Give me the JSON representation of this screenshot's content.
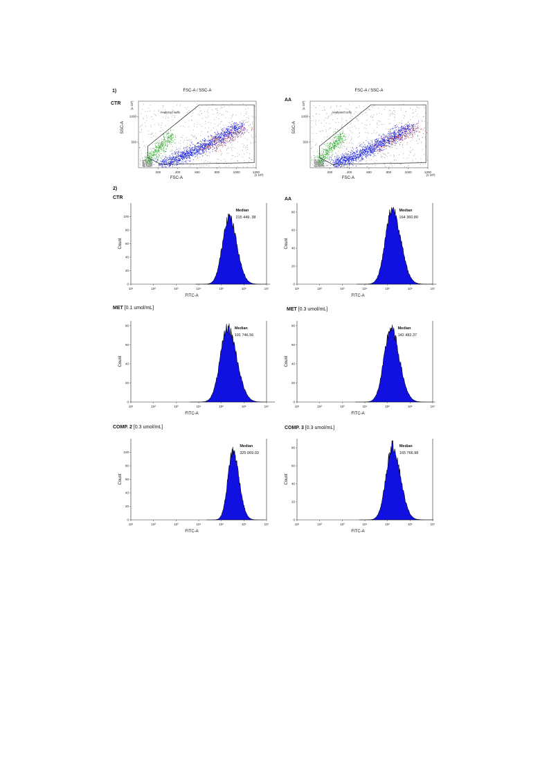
{
  "labels": {
    "section1": "1)",
    "section2": "2)",
    "ctr": "CTR",
    "aa": "AA"
  },
  "scatter_panels": [
    {
      "id": "ctr",
      "title": "FSC-A / SSC-A",
      "xlabel": "FSC-A",
      "ylabel": "SSC-A",
      "xunit": "(x 10³)",
      "yunit": "(x 10³)",
      "gate_label": "Analyzed cells"
    },
    {
      "id": "aa",
      "title": "FSC-A / SSC-A",
      "xlabel": "FSC-A",
      "ylabel": "SSC-A",
      "xunit": "(x 10³)",
      "yunit": "(x 10³)",
      "gate_label": "Analyzed cells"
    }
  ],
  "histogram_labels": [
    {
      "name": "CTR",
      "conc": ""
    },
    {
      "name": "AA",
      "conc": ""
    },
    {
      "name": "MET",
      "conc": "[0.1 umol/mL]"
    },
    {
      "name": "MET",
      "conc": "[0.3 umol/mL]"
    },
    {
      "name": "COMP. 2",
      "conc": "[0.3 umol/mL]"
    },
    {
      "name": "COMP. 3",
      "conc": "[0.3 umol/mL]"
    }
  ],
  "chart_data": [
    {
      "type": "scatter",
      "title": "FSC-A / SSC-A",
      "xlabel": "FSC-A",
      "ylabel": "SSC-A",
      "xlim": [
        0,
        1200
      ],
      "ylim": [
        0,
        1300
      ],
      "x_ticks": [
        "200",
        "400",
        "600",
        "800",
        "1000",
        "1200"
      ],
      "y_ticks": [
        "500",
        "1000"
      ],
      "colors": {
        "gray": "#9a9a9a",
        "green": "#2fae2f",
        "blue": "#1a22d8",
        "red": "#c0303a"
      }
    },
    {
      "type": "scatter",
      "title": "FSC-A / SSC-A",
      "xlabel": "FSC-A",
      "ylabel": "SSC-A",
      "xlim": [
        0,
        1200
      ],
      "ylim": [
        0,
        1300
      ],
      "x_ticks": [
        "200",
        "400",
        "600",
        "800",
        "1000",
        "1200"
      ],
      "y_ticks": [
        "500",
        "1000"
      ],
      "colors": {
        "gray": "#9a9a9a",
        "green": "#2fae2f",
        "blue": "#1a22d8",
        "red": "#c0303a"
      }
    },
    {
      "type": "area",
      "xlabel": "FITC-A",
      "ylabel": "Count",
      "xscale": "log",
      "xlim": [
        1,
        7
      ],
      "ylim": [
        0,
        120
      ],
      "x_ticks": [
        "10¹",
        "10²",
        "10³",
        "10⁴",
        "10⁵",
        "10⁶",
        "10⁷"
      ],
      "y_ticks": [
        "0",
        "20",
        "40",
        "60",
        "80",
        "100"
      ],
      "median_label": "Median",
      "median_value": "215 449. 38",
      "peak_log": 5.33,
      "peak_count": 100,
      "width": 0.28,
      "color": "#1010e0"
    },
    {
      "type": "area",
      "xlabel": "FITC-A",
      "ylabel": "Count",
      "xscale": "log",
      "xlim": [
        1,
        7
      ],
      "ylim": [
        0,
        90
      ],
      "x_ticks": [
        "10¹",
        "10²",
        "10³",
        "10⁴",
        "10⁵",
        "10⁶",
        "10⁷"
      ],
      "y_ticks": [
        "0",
        "20",
        "40",
        "60",
        "80"
      ],
      "median_label": "Median",
      "median_value": "164 360.80",
      "peak_log": 5.21,
      "peak_count": 84,
      "width": 0.3,
      "color": "#1010e0"
    },
    {
      "type": "area",
      "xlabel": "FITC-A",
      "ylabel": "Count",
      "xscale": "log",
      "xlim": [
        1,
        7
      ],
      "ylim": [
        0,
        85
      ],
      "x_ticks": [
        "10¹",
        "10²",
        "10³",
        "10⁴",
        "10⁵",
        "10⁶",
        "10⁷"
      ],
      "y_ticks": [
        "0",
        "20",
        "40",
        "60",
        "80"
      ],
      "median_label": "Median",
      "median_value": "191 746.56",
      "peak_log": 5.28,
      "peak_count": 78,
      "width": 0.32,
      "color": "#1010e0"
    },
    {
      "type": "area",
      "xlabel": "FITC-A",
      "ylabel": "Count",
      "xscale": "log",
      "xlim": [
        1,
        7
      ],
      "ylim": [
        0,
        85
      ],
      "x_ticks": [
        "10¹",
        "10²",
        "10³",
        "10⁴",
        "10⁵",
        "10⁶",
        "10⁷"
      ],
      "y_ticks": [
        "0",
        "20",
        "40",
        "60",
        "80"
      ],
      "median_label": "Median",
      "median_value": "142 482.37",
      "peak_log": 5.15,
      "peak_count": 77,
      "width": 0.3,
      "color": "#1010e0"
    },
    {
      "type": "area",
      "xlabel": "FITC-A",
      "ylabel": "Count",
      "xscale": "log",
      "xlim": [
        1,
        7
      ],
      "ylim": [
        0,
        120
      ],
      "x_ticks": [
        "10¹",
        "10²",
        "10³",
        "10⁴",
        "10⁵",
        "10⁶",
        "10⁷"
      ],
      "y_ticks": [
        "0",
        "20",
        "40",
        "60",
        "80",
        "100"
      ],
      "median_label": "Median",
      "median_value": "325 069.03",
      "peak_log": 5.51,
      "peak_count": 102,
      "width": 0.22,
      "color": "#1010e0"
    },
    {
      "type": "area",
      "xlabel": "FITC-A",
      "ylabel": "Count",
      "xscale": "log",
      "xlim": [
        1,
        7
      ],
      "ylim": [
        0,
        90
      ],
      "x_ticks": [
        "10¹",
        "10²",
        "10³",
        "10⁴",
        "10⁵",
        "10⁶",
        "10⁷"
      ],
      "y_ticks": [
        "0",
        "20",
        "40",
        "60",
        "80"
      ],
      "median_label": "Median",
      "median_value": "165 766.98",
      "peak_log": 5.22,
      "peak_count": 82,
      "width": 0.28,
      "color": "#1010e0"
    }
  ]
}
